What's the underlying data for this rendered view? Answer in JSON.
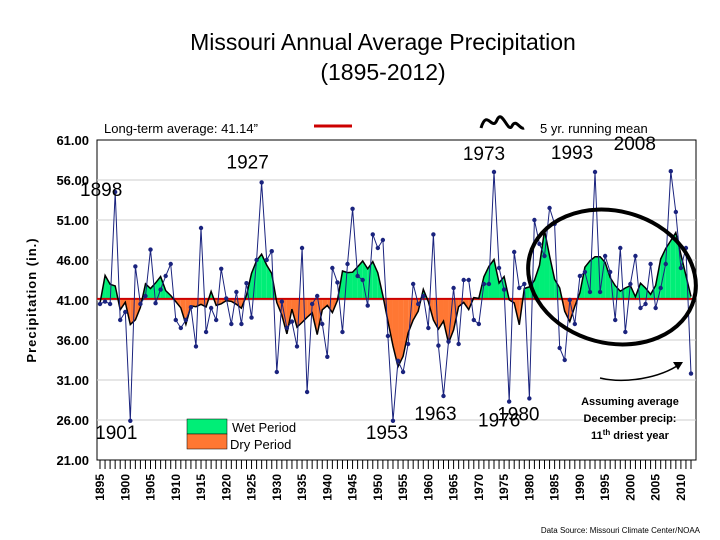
{
  "chart_data": {
    "type": "line",
    "title_line1": "Missouri Annual Average Precipitation",
    "title_line2": "(1895-2012)",
    "xlabel": "",
    "ylabel": "Precipitation (in.)",
    "ylim": [
      21,
      61
    ],
    "y_ticks": [
      "61.00",
      "56.00",
      "51.00",
      "46.00",
      "41.00",
      "36.00",
      "31.00",
      "26.00",
      "21.00"
    ],
    "x_tick_labels": [
      "1895",
      "1900",
      "1905",
      "1910",
      "1915",
      "1920",
      "1925",
      "1930",
      "1935",
      "1940",
      "1945",
      "1950",
      "1955",
      "1960",
      "1965",
      "1970",
      "1975",
      "1980",
      "1985",
      "1990",
      "1995",
      "2000",
      "2005",
      "2010"
    ],
    "x_start": 1895,
    "x_end": 2012,
    "longterm_average": 41.14,
    "average_label": "Long-term average: 41.14”",
    "running_mean_label": "5 yr. running mean",
    "legend_wet": "Wet Period",
    "legend_dry": "Dry Period",
    "colors": {
      "wet": "#00ee77",
      "dry": "#ff7733",
      "average_line": "#cc0000",
      "annual": "#1a237e",
      "running_mean": "#000000",
      "circle": "#000000"
    },
    "annotation_note_line1": "Assuming average",
    "annotation_note_line2": "December precip:",
    "annotation_note_line3_pre": "11",
    "annotation_note_line3_sup": "th",
    "annotation_note_line3_post": " driest year",
    "data_source": "Data Source: Missouri Climate Center/NOAA",
    "year_labels": [
      {
        "label": "1898",
        "year": 1898,
        "value": 54.5
      },
      {
        "label": "1901",
        "year": 1901,
        "value": 25.9
      },
      {
        "label": "1927",
        "year": 1927,
        "value": 55.7
      },
      {
        "label": "1953",
        "year": 1953,
        "value": 25.9
      },
      {
        "label": "1963",
        "year": 1963,
        "value": 29.0
      },
      {
        "label": "1973",
        "year": 1973,
        "value": 57.0
      },
      {
        "label": "1976",
        "year": 1976,
        "value": 28.3
      },
      {
        "label": "1980",
        "year": 1980,
        "value": 28.7
      },
      {
        "label": "1993",
        "year": 1993,
        "value": 57.0
      },
      {
        "label": "2008",
        "year": 2008,
        "value": 57.1
      }
    ],
    "x": [
      1895,
      1896,
      1897,
      1898,
      1899,
      1900,
      1901,
      1902,
      1903,
      1904,
      1905,
      1906,
      1907,
      1908,
      1909,
      1910,
      1911,
      1912,
      1913,
      1914,
      1915,
      1916,
      1917,
      1918,
      1919,
      1920,
      1921,
      1922,
      1923,
      1924,
      1925,
      1926,
      1927,
      1928,
      1929,
      1930,
      1931,
      1932,
      1933,
      1934,
      1935,
      1936,
      1937,
      1938,
      1939,
      1940,
      1941,
      1942,
      1943,
      1944,
      1945,
      1946,
      1947,
      1948,
      1949,
      1950,
      1951,
      1952,
      1953,
      1954,
      1955,
      1956,
      1957,
      1958,
      1959,
      1960,
      1961,
      1962,
      1963,
      1964,
      1965,
      1966,
      1967,
      1968,
      1969,
      1970,
      1971,
      1972,
      1973,
      1974,
      1975,
      1976,
      1977,
      1978,
      1979,
      1980,
      1981,
      1982,
      1983,
      1984,
      1985,
      1986,
      1987,
      1988,
      1989,
      1990,
      1991,
      1992,
      1993,
      1994,
      1995,
      1996,
      1997,
      1998,
      1999,
      2000,
      2001,
      2002,
      2003,
      2004,
      2005,
      2006,
      2007,
      2008,
      2009,
      2010,
      2011,
      2012
    ],
    "series": [
      {
        "values": [
          40.5,
          40.8,
          40.5,
          54.5,
          38.5,
          39.5,
          25.9,
          45.2,
          40.5,
          41.5,
          47.3,
          40.6,
          42.3,
          44.0,
          45.5,
          38.5,
          37.5,
          38.5,
          40.1,
          35.2,
          50.0,
          37.0,
          40.0,
          38.5,
          44.9,
          41.2,
          38.0,
          42.0,
          38.0,
          43.1,
          38.8,
          46.0,
          55.7,
          46.0,
          47.1,
          32.0,
          40.8,
          37.5,
          38.3,
          35.2,
          47.5,
          29.5,
          40.5,
          41.5,
          38.0,
          33.9,
          45.0,
          43.2,
          37.0,
          45.5,
          52.4,
          44.0,
          43.5,
          40.3,
          49.2,
          47.5,
          48.5,
          36.5,
          25.9,
          33.4,
          32.0,
          35.5,
          43.0,
          40.5,
          41.5,
          37.5,
          49.2,
          35.3,
          29.0,
          35.8,
          42.5,
          35.5,
          43.5,
          43.5,
          38.5,
          38.0,
          43.0,
          43.0,
          57.0,
          45.0,
          42.3,
          28.3,
          47.0,
          42.5,
          43.0,
          28.7,
          51.0,
          48.0,
          46.5,
          52.5,
          50.5,
          35.0,
          33.5,
          41.0,
          38.0,
          44.0,
          44.5,
          42.0,
          57.0,
          42.0,
          46.5,
          44.5,
          38.5,
          47.5,
          37.0,
          43.0,
          46.5,
          40.0,
          40.5,
          45.5,
          40.0,
          42.5,
          45.5,
          57.1,
          52.0,
          45.0,
          47.5,
          31.8
        ]
      }
    ]
  }
}
